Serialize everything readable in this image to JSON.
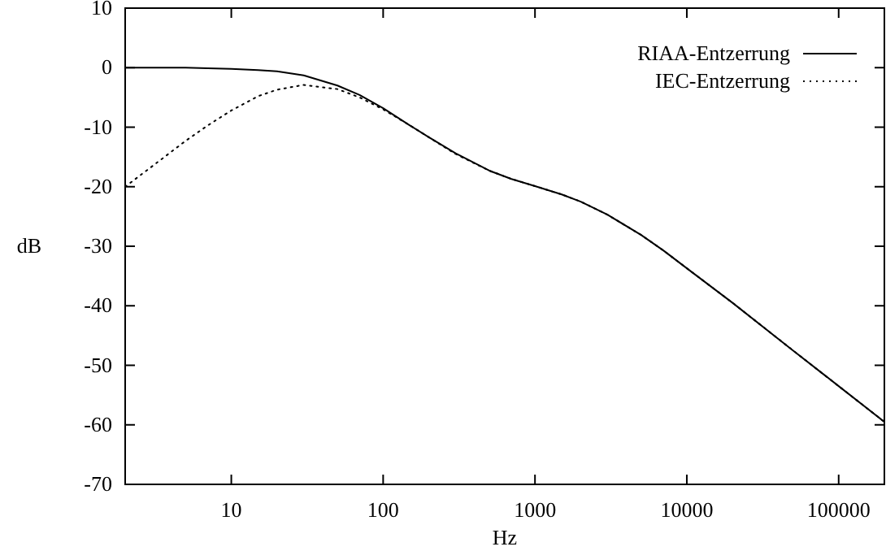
{
  "chart_data": {
    "type": "line",
    "xlabel": "Hz",
    "ylabel": "dB",
    "log": "x",
    "grid": false,
    "legend": "top right",
    "marker": "none",
    "x": [
      2,
      3,
      5,
      7,
      10,
      15,
      20,
      30,
      50,
      70,
      100,
      150,
      200,
      300,
      500,
      700,
      1000,
      1500,
      2000,
      3000,
      5000,
      7000,
      10000,
      20000,
      50000,
      100000,
      200000
    ],
    "xlim": [
      2,
      200000
    ],
    "xticks": [
      10,
      100,
      1000,
      10000,
      100000
    ],
    "ylim": [
      -70,
      10
    ],
    "yticks": [
      -70,
      -60,
      -50,
      -40,
      -30,
      -20,
      -10,
      0,
      10
    ],
    "series": [
      {
        "name": "RIAA-Entzerrung",
        "color": "#000000",
        "line_style": "solid",
        "values": [
          0.0,
          0.0,
          0.0,
          -0.1,
          -0.2,
          -0.4,
          -0.6,
          -1.3,
          -3.0,
          -4.6,
          -6.8,
          -9.7,
          -11.7,
          -14.4,
          -17.3,
          -18.7,
          -19.9,
          -21.3,
          -22.5,
          -24.7,
          -28.1,
          -30.7,
          -33.7,
          -39.5,
          -47.5,
          -53.5,
          -59.5
        ]
      },
      {
        "name": "IEC-Entzerrung",
        "color": "#000000",
        "line_style": "dotted",
        "values": [
          -20.0,
          -16.6,
          -12.3,
          -9.7,
          -7.2,
          -4.8,
          -3.7,
          -2.9,
          -3.6,
          -5.0,
          -7.0,
          -9.7,
          -11.7,
          -14.5,
          -17.3,
          -18.7,
          -19.9,
          -21.3,
          -22.5,
          -24.7,
          -28.1,
          -30.7,
          -33.7,
          -39.5,
          -47.5,
          -53.5,
          -59.5
        ]
      }
    ]
  }
}
